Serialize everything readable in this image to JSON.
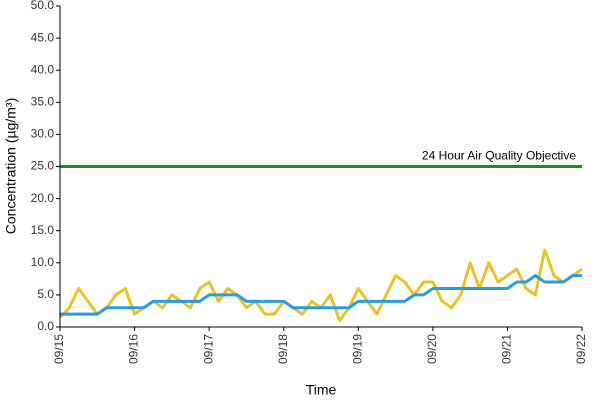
{
  "chart_data": {
    "type": "line",
    "ylabel": "Concentration (µg/m³)",
    "xlabel": "Time",
    "x": [
      0,
      0.125,
      0.25,
      0.375,
      0.5,
      0.625,
      0.75,
      0.875,
      1,
      1.125,
      1.25,
      1.375,
      1.5,
      1.625,
      1.75,
      1.875,
      2,
      2.125,
      2.25,
      2.375,
      2.5,
      2.625,
      2.75,
      2.875,
      3,
      3.125,
      3.25,
      3.375,
      3.5,
      3.625,
      3.75,
      3.875,
      4,
      4.125,
      4.25,
      4.375,
      4.5,
      4.625,
      4.75,
      4.875,
      5,
      5.125,
      5.25,
      5.375,
      5.5,
      5.625,
      5.75,
      5.875,
      6,
      6.125,
      6.25,
      6.375,
      6.5,
      6.625,
      6.75,
      6.875,
      7
    ],
    "series": [
      {
        "color": "#e8c22c",
        "values": [
          1.5,
          3,
          6,
          4,
          2,
          3,
          5,
          6,
          2,
          3,
          4,
          3,
          5,
          4,
          3,
          6,
          7,
          4,
          6,
          5,
          3,
          4,
          2,
          2,
          4,
          3,
          2,
          4,
          3,
          5,
          1,
          3,
          6,
          4,
          2,
          5,
          8,
          7,
          5,
          7,
          7,
          4,
          3,
          5,
          10,
          6,
          10,
          7,
          8,
          9,
          6,
          5,
          12,
          8,
          7,
          8,
          9
        ]
      },
      {
        "color": "#2b9be0",
        "values": [
          2,
          2,
          2,
          2,
          2,
          3,
          3,
          3,
          3,
          3,
          4,
          4,
          4,
          4,
          4,
          4,
          5,
          5,
          5,
          5,
          4,
          4,
          4,
          4,
          4,
          3,
          3,
          3,
          3,
          3,
          3,
          3,
          4,
          4,
          4,
          4,
          4,
          4,
          5,
          5,
          6,
          6,
          6,
          6,
          6,
          6,
          6,
          6,
          6,
          7,
          7,
          8,
          7,
          7,
          7,
          8,
          8
        ]
      }
    ],
    "objective": {
      "value": 25,
      "label": "24 Hour Air Quality Objective",
      "color": "#1e8a1e"
    },
    "xlim": [
      0,
      7
    ],
    "xticks": [
      {
        "value": 0,
        "label": "09/15"
      },
      {
        "value": 1,
        "label": "09/16"
      },
      {
        "value": 2,
        "label": "09/17"
      },
      {
        "value": 3,
        "label": "09/18"
      },
      {
        "value": 4,
        "label": "09/19"
      },
      {
        "value": 5,
        "label": "09/20"
      },
      {
        "value": 6,
        "label": "09/21"
      },
      {
        "value": 7,
        "label": "09/22"
      }
    ],
    "ylim": [
      0,
      50
    ],
    "yticks": [
      {
        "value": 0,
        "label": "0.0"
      },
      {
        "value": 5,
        "label": "5.0"
      },
      {
        "value": 10,
        "label": "10.0"
      },
      {
        "value": 15,
        "label": "15.0"
      },
      {
        "value": 20,
        "label": "20.0"
      },
      {
        "value": 25,
        "label": "25.0"
      },
      {
        "value": 30,
        "label": "30.0"
      },
      {
        "value": 35,
        "label": "35.0"
      },
      {
        "value": 40,
        "label": "40.0"
      },
      {
        "value": 45,
        "label": "45.0"
      },
      {
        "value": 50,
        "label": "50.0"
      }
    ]
  }
}
